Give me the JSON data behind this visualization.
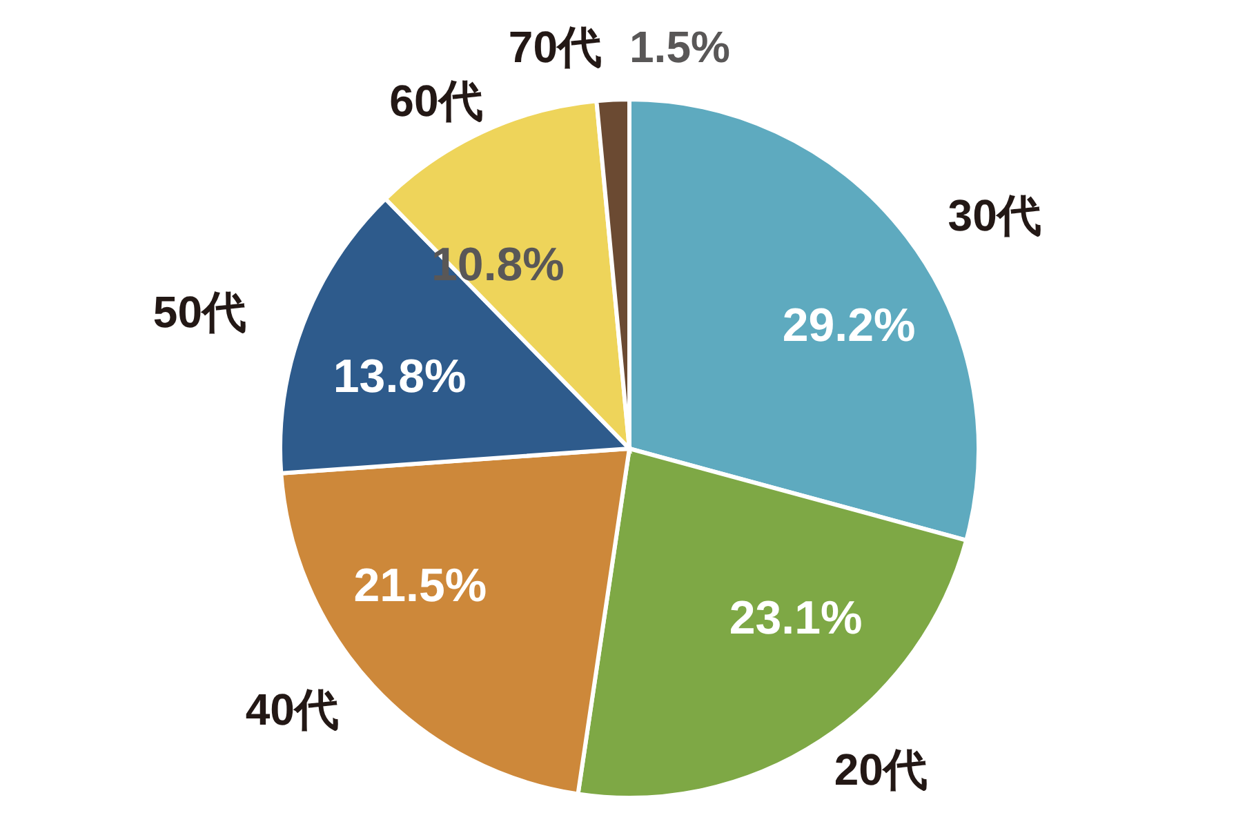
{
  "chart_data": {
    "type": "pie",
    "categories": [
      "30代",
      "20代",
      "40代",
      "50代",
      "60代",
      "70代"
    ],
    "values": [
      29.2,
      23.1,
      21.5,
      13.8,
      10.8,
      1.5
    ],
    "value_labels": [
      "29.2%",
      "23.1%",
      "21.5%",
      "13.8%",
      "10.8%",
      "1.5%"
    ],
    "colors": [
      "#5eaabf",
      "#7ea845",
      "#cd883a",
      "#2e5b8c",
      "#eed45a",
      "#6b4a32"
    ],
    "legend": false
  }
}
